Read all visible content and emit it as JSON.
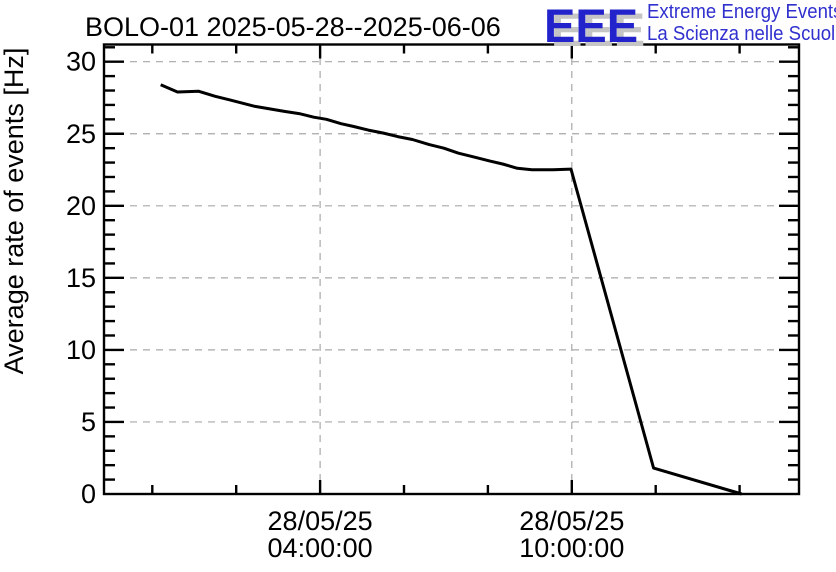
{
  "header": {
    "title": "BOLO-01 2025-05-28--2025-06-06"
  },
  "logo": {
    "acronym": "EEE",
    "tagline_line1": "Extreme Energy Events",
    "tagline_line2": "La Scienza nelle Scuole",
    "text_color": "#2f2fcf",
    "shadow_color": "#c5c5c5"
  },
  "chart_data": {
    "type": "line",
    "title": "BOLO-01 2025-05-28--2025-06-06",
    "xlabel": "",
    "ylabel": "Average rate of events [Hz]",
    "x_unit": "time on 28/05/25, hours",
    "xlim_hours": [
      -1.15,
      15.42
    ],
    "ylim": [
      0,
      31.2
    ],
    "grid": "dashed gray lines at labeled major ticks",
    "legend": "none",
    "line_color": "#000000",
    "y_major_ticks": [
      0,
      5,
      10,
      15,
      20,
      25,
      30
    ],
    "y_minor_tick_step": 1,
    "x_minor_tick_hours": [
      0,
      2,
      4,
      6,
      8,
      10,
      12,
      14
    ],
    "x_major_ticks": [
      {
        "hours": 4,
        "line1": "28/05/25",
        "line2": "04:00:00"
      },
      {
        "hours": 10,
        "line1": "28/05/25",
        "line2": "10:00:00"
      }
    ],
    "series": [
      {
        "name": "average_rate_of_events_hz",
        "points_hours_hz": [
          [
            0.2,
            28.4
          ],
          [
            0.6,
            27.9
          ],
          [
            1.1,
            27.95
          ],
          [
            1.5,
            27.6
          ],
          [
            1.85,
            27.35
          ],
          [
            2.45,
            26.9
          ],
          [
            3.15,
            26.55
          ],
          [
            3.5,
            26.4
          ],
          [
            3.85,
            26.15
          ],
          [
            4.15,
            26.0
          ],
          [
            4.5,
            25.7
          ],
          [
            4.8,
            25.5
          ],
          [
            5.15,
            25.25
          ],
          [
            5.5,
            25.05
          ],
          [
            5.85,
            24.8
          ],
          [
            6.2,
            24.6
          ],
          [
            6.6,
            24.25
          ],
          [
            6.95,
            24.0
          ],
          [
            7.3,
            23.65
          ],
          [
            7.65,
            23.4
          ],
          [
            8.05,
            23.1
          ],
          [
            8.35,
            22.9
          ],
          [
            8.7,
            22.6
          ],
          [
            9.05,
            22.5
          ],
          [
            9.55,
            22.5
          ],
          [
            9.98,
            22.55
          ],
          [
            11.95,
            1.8
          ],
          [
            14.05,
            0.0
          ]
        ]
      }
    ]
  }
}
